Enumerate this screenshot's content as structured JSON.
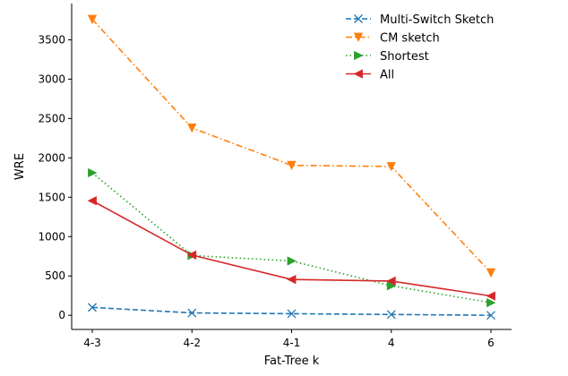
{
  "chart_data": {
    "type": "line",
    "title": "",
    "xlabel": "Fat-Tree k",
    "ylabel": "WRE",
    "categories": [
      "4-3",
      "4-2",
      "4-1",
      "4",
      "6"
    ],
    "yticks": [
      0,
      500,
      1000,
      1500,
      2000,
      2500,
      3000,
      3500
    ],
    "ylim": [
      -180,
      3960
    ],
    "grid": false,
    "legend_position": "top-right",
    "series": [
      {
        "name": "Multi-Switch Sketch",
        "values": [
          100,
          30,
          20,
          10,
          0
        ],
        "color": "#1f77b4",
        "line_style": "dashed",
        "marker": "x"
      },
      {
        "name": "CM sketch",
        "values": [
          3760,
          2380,
          1905,
          1890,
          540
        ],
        "color": "#ff7f0e",
        "line_style": "dashdot",
        "marker": "triangle-down"
      },
      {
        "name": "Shortest",
        "values": [
          1810,
          760,
          690,
          375,
          160
        ],
        "color": "#2ca02c",
        "line_style": "dotted",
        "marker": "triangle-right"
      },
      {
        "name": "All",
        "values": [
          1455,
          765,
          455,
          435,
          245
        ],
        "color": "#d62728",
        "line_style": "solid",
        "marker": "triangle-left"
      }
    ]
  }
}
